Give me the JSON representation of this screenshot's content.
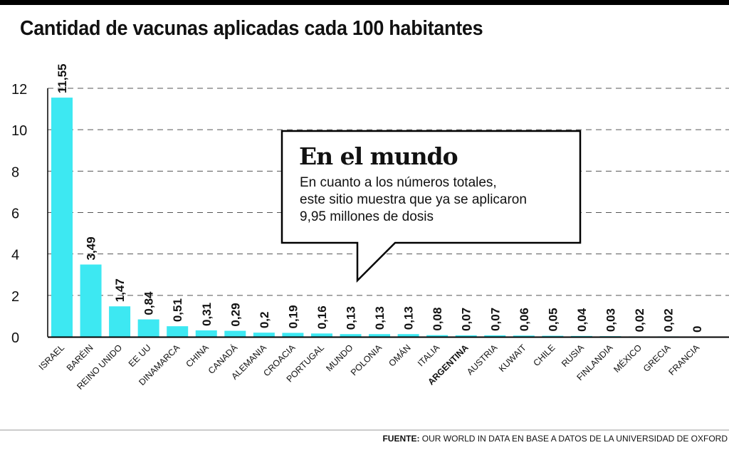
{
  "title": "Cantidad de vacunas aplicadas cada 100 habitantes",
  "callout": {
    "title": "En el mundo",
    "lines": [
      "En cuanto a los números totales,",
      "este sitio muestra que ya se aplicaron",
      "9,95 millones de dosis"
    ]
  },
  "source": {
    "label": "FUENTE:",
    "text": "OUR WORLD IN DATA EN BASE A DATOS DE LA UNIVERSIDAD DE OXFORD"
  },
  "colors": {
    "bar": "#3de8f2",
    "grid": "#555555",
    "axis": "#000000"
  },
  "chart_data": {
    "type": "bar",
    "title": "Cantidad de vacunas aplicadas cada 100 habitantes",
    "xlabel": "",
    "ylabel": "",
    "ylim": [
      0,
      12
    ],
    "yticks": [
      0,
      2,
      4,
      6,
      8,
      10,
      12
    ],
    "grid": "horizontal dashed",
    "categories": [
      "ISRAEL",
      "BARÉIN",
      "REINO UNIDO",
      "EE UU",
      "DINAMARCA",
      "CHINA",
      "CANADÁ",
      "ALEMANIA",
      "CROACIA",
      "PORTUGAL",
      "MUNDO",
      "POLONIA",
      "OMÁN",
      "ITALIA",
      "ARGENTINA",
      "AUSTRIA",
      "KUWAIT",
      "CHILE",
      "RUSIA",
      "FINLANDIA",
      "MÉXICO",
      "GRECIA",
      "FRANCIA"
    ],
    "values": [
      11.55,
      3.49,
      1.47,
      0.84,
      0.51,
      0.31,
      0.29,
      0.2,
      0.19,
      0.16,
      0.13,
      0.13,
      0.13,
      0.08,
      0.07,
      0.07,
      0.06,
      0.05,
      0.04,
      0.03,
      0.02,
      0.02,
      0
    ],
    "value_labels": [
      "11,55",
      "3,49",
      "1,47",
      "0,84",
      "0,51",
      "0,31",
      "0,29",
      "0,2",
      "0,19",
      "0,16",
      "0,13",
      "0,13",
      "0,13",
      "0,08",
      "0,07",
      "0,07",
      "0,06",
      "0,05",
      "0,04",
      "0,03",
      "0,02",
      "0,02",
      "0"
    ],
    "highlight": "ARGENTINA"
  }
}
